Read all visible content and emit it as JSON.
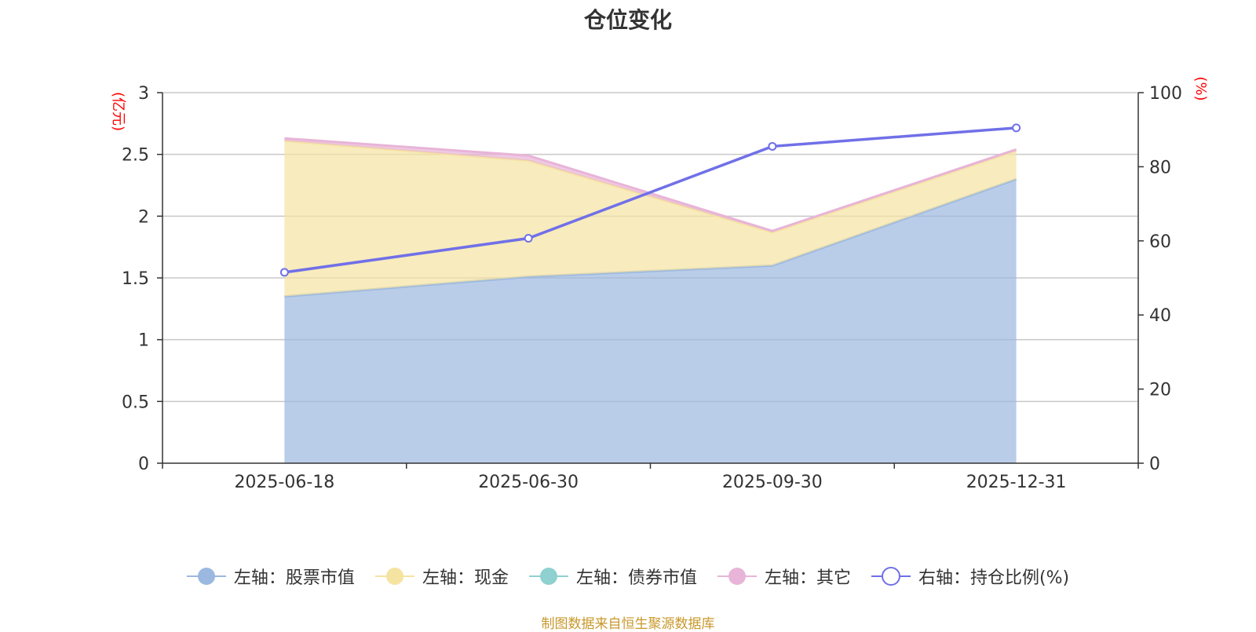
{
  "title": "仓位变化",
  "source": "制图数据来自恒生聚源数据库",
  "chart_data": {
    "type": "area",
    "categories": [
      "2025-06-18",
      "2025-06-30",
      "2025-09-30",
      "2025-12-31"
    ],
    "left_axis": {
      "unit": "(亿元)",
      "ylim": [
        0,
        3
      ],
      "ticks": [
        "0",
        "0.5",
        "1",
        "1.5",
        "2",
        "2.5",
        "3"
      ]
    },
    "right_axis": {
      "unit": "(%)",
      "ylim": [
        0,
        100
      ],
      "ticks": [
        "0",
        "20",
        "40",
        "60",
        "80",
        "100"
      ]
    },
    "series": [
      {
        "name": "左轴：股票市值",
        "axis": "left",
        "kind": "stacked-area",
        "values": [
          1.35,
          1.51,
          1.6,
          2.3
        ],
        "color": "#9bb8e0"
      },
      {
        "name": "左轴：现金",
        "axis": "left",
        "kind": "stacked-area",
        "values": [
          1.26,
          0.94,
          0.27,
          0.23
        ],
        "color": "#f5e3a1"
      },
      {
        "name": "左轴：债券市值",
        "axis": "left",
        "kind": "stacked-area",
        "values": [
          0,
          0,
          0,
          0
        ],
        "color": "#8fd0d0"
      },
      {
        "name": "左轴：其它",
        "axis": "left",
        "kind": "stacked-area",
        "values": [
          0.02,
          0.04,
          0.01,
          0.01
        ],
        "color": "#e8b4d8"
      },
      {
        "name": "右轴：持仓比例(%)",
        "axis": "right",
        "kind": "line",
        "values": [
          51.5,
          60.7,
          85.5,
          90.5
        ],
        "color": "#7070e8"
      }
    ]
  }
}
